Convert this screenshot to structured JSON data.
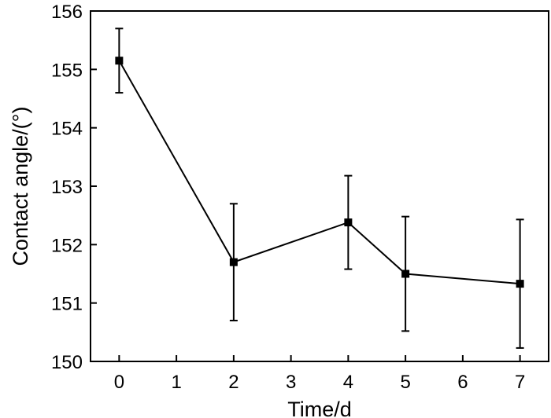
{
  "chart_data": {
    "type": "line",
    "title": "",
    "xlabel": "Time/d",
    "ylabel": "Contact angle/(°)",
    "xlim": [
      -0.5,
      7.5
    ],
    "ylim": [
      150,
      156
    ],
    "x_ticks": [
      0,
      1,
      2,
      3,
      4,
      5,
      6,
      7
    ],
    "y_ticks": [
      150,
      151,
      152,
      153,
      154,
      155,
      156
    ],
    "grid": false,
    "legend": "none",
    "series": [
      {
        "marker": "square",
        "color": "#000000",
        "points": [
          {
            "x": 0,
            "y": 155.15,
            "err": 0.55
          },
          {
            "x": 2,
            "y": 151.7,
            "err": 1.0
          },
          {
            "x": 4,
            "y": 152.38,
            "err": 0.8
          },
          {
            "x": 5,
            "y": 151.5,
            "err": 0.98
          },
          {
            "x": 7,
            "y": 151.33,
            "err": 1.1
          }
        ]
      }
    ]
  }
}
